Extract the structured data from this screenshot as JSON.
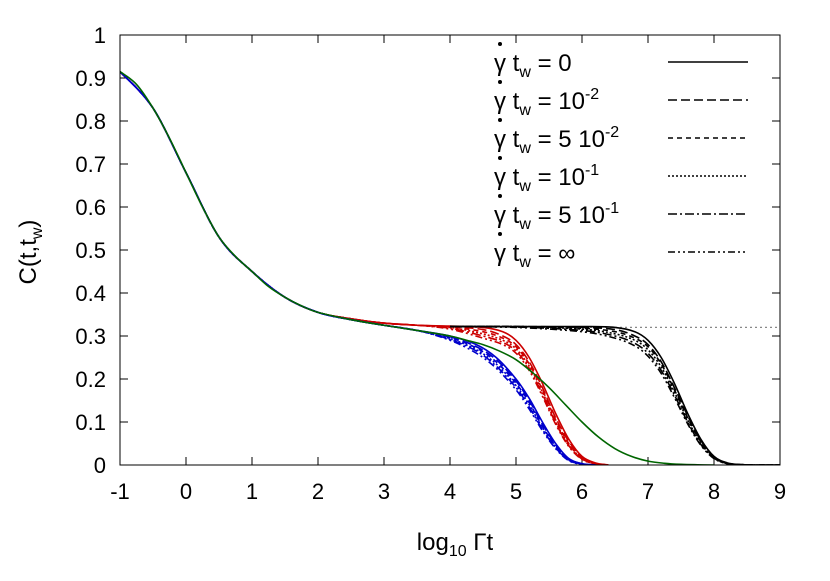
{
  "chart_data": {
    "type": "line",
    "xlabel": "log10 Γt",
    "ylabel": "C(t,tw)",
    "xlim": [
      -1,
      9
    ],
    "ylim": [
      0,
      1
    ],
    "xticks": [
      "-1",
      "0",
      "1",
      "2",
      "3",
      "4",
      "5",
      "6",
      "7",
      "8",
      "9"
    ],
    "yticks": [
      "0",
      "0.1",
      "0.2",
      "0.3",
      "0.4",
      "0.5",
      "0.6",
      "0.7",
      "0.8",
      "0.9",
      "1"
    ],
    "plateau_line": {
      "y": 0.32,
      "x_from": 4.0,
      "x_to": 9.0,
      "style": "dotted gray"
    },
    "legend": {
      "position": "top-right",
      "entries": [
        {
          "label": "γ̇ tw = 0",
          "dash": "solid"
        },
        {
          "label": "γ̇ tw = 10^-2",
          "dash": "dashed"
        },
        {
          "label": "γ̇ tw = 5 10^-2",
          "dash": "short-dashed"
        },
        {
          "label": "γ̇ tw = 10^-1",
          "dash": "dotted"
        },
        {
          "label": "γ̇ tw = 5 10^-1",
          "dash": "dash-dot"
        },
        {
          "label": "γ̇ tw = ∞",
          "dash": "dash-dot-dot"
        }
      ]
    },
    "series_groups": [
      {
        "color": "#cc0000",
        "series": [
          {
            "dash": "solid",
            "x": [
              -1,
              -0.5,
              0,
              0.5,
              1,
              1.5,
              2,
              2.5,
              3,
              3.5,
              4,
              4.5,
              4.8,
              5,
              5.2,
              5.4,
              5.6,
              5.8,
              6,
              6.2,
              6.4
            ],
            "y": [
              0.915,
              0.83,
              0.68,
              0.53,
              0.45,
              0.39,
              0.355,
              0.34,
              0.33,
              0.325,
              0.323,
              0.32,
              0.31,
              0.29,
              0.25,
              0.19,
              0.12,
              0.06,
              0.02,
              0.005,
              0
            ]
          },
          {
            "dash": "dashed",
            "x": [
              -1,
              -0.5,
              0,
              0.5,
              1,
              1.5,
              2,
              2.5,
              3,
              3.5,
              4,
              4.5,
              4.8,
              5,
              5.2,
              5.4,
              5.6,
              5.8,
              6,
              6.2,
              6.4
            ],
            "y": [
              0.915,
              0.83,
              0.68,
              0.53,
              0.45,
              0.39,
              0.355,
              0.34,
              0.33,
              0.325,
              0.322,
              0.315,
              0.3,
              0.28,
              0.24,
              0.18,
              0.11,
              0.055,
              0.018,
              0.004,
              0
            ]
          },
          {
            "dash": "short-dashed",
            "x": [
              -1,
              -0.5,
              0,
              0.5,
              1,
              1.5,
              2,
              2.5,
              3,
              3.5,
              4,
              4.5,
              4.8,
              5,
              5.2,
              5.4,
              5.6,
              5.8,
              6,
              6.2,
              6.4
            ],
            "y": [
              0.915,
              0.83,
              0.68,
              0.53,
              0.45,
              0.39,
              0.355,
              0.34,
              0.33,
              0.325,
              0.321,
              0.31,
              0.295,
              0.275,
              0.235,
              0.175,
              0.105,
              0.05,
              0.016,
              0.004,
              0
            ]
          },
          {
            "dash": "dotted",
            "x": [
              -1,
              -0.5,
              0,
              0.5,
              1,
              1.5,
              2,
              2.5,
              3,
              3.5,
              4,
              4.5,
              4.8,
              5,
              5.2,
              5.4,
              5.6,
              5.8,
              6,
              6.2,
              6.4
            ],
            "y": [
              0.915,
              0.83,
              0.68,
              0.53,
              0.45,
              0.39,
              0.355,
              0.34,
              0.33,
              0.325,
              0.32,
              0.305,
              0.29,
              0.27,
              0.23,
              0.17,
              0.1,
              0.048,
              0.015,
              0.003,
              0
            ]
          },
          {
            "dash": "dash-dot",
            "x": [
              -1,
              -0.5,
              0,
              0.5,
              1,
              1.5,
              2,
              2.5,
              3,
              3.5,
              4,
              4.5,
              4.8,
              5,
              5.2,
              5.4,
              5.6,
              5.8,
              6,
              6.2,
              6.4
            ],
            "y": [
              0.915,
              0.83,
              0.68,
              0.53,
              0.45,
              0.39,
              0.355,
              0.34,
              0.33,
              0.325,
              0.318,
              0.3,
              0.285,
              0.265,
              0.225,
              0.165,
              0.098,
              0.045,
              0.014,
              0.003,
              0
            ]
          },
          {
            "dash": "dash-dot-dot",
            "x": [
              -1,
              -0.5,
              0,
              0.5,
              1,
              1.5,
              2,
              2.5,
              3,
              3.5,
              4,
              4.5,
              4.8,
              5,
              5.2,
              5.4,
              5.6,
              5.8,
              6,
              6.2,
              6.4
            ],
            "y": [
              0.915,
              0.83,
              0.68,
              0.53,
              0.45,
              0.39,
              0.355,
              0.34,
              0.33,
              0.325,
              0.316,
              0.295,
              0.28,
              0.26,
              0.22,
              0.16,
              0.095,
              0.043,
              0.013,
              0.003,
              0
            ]
          }
        ]
      },
      {
        "color": "#0000cc",
        "series": [
          {
            "dash": "solid",
            "x": [
              -1,
              -0.5,
              0,
              0.5,
              1,
              1.5,
              2,
              2.5,
              3,
              3.5,
              4,
              4.4,
              4.7,
              5,
              5.2,
              5.4,
              5.6,
              5.8,
              6,
              6.2
            ],
            "y": [
              0.915,
              0.83,
              0.68,
              0.53,
              0.45,
              0.39,
              0.355,
              0.338,
              0.325,
              0.313,
              0.3,
              0.28,
              0.25,
              0.2,
              0.155,
              0.1,
              0.05,
              0.015,
              0.003,
              0
            ]
          },
          {
            "dash": "dashed",
            "x": [
              -1,
              -0.5,
              0,
              0.5,
              1,
              1.5,
              2,
              2.5,
              3,
              3.5,
              4,
              4.4,
              4.7,
              5,
              5.2,
              5.4,
              5.6,
              5.8,
              6,
              6.2
            ],
            "y": [
              0.915,
              0.83,
              0.68,
              0.53,
              0.45,
              0.39,
              0.355,
              0.338,
              0.325,
              0.313,
              0.298,
              0.275,
              0.245,
              0.195,
              0.15,
              0.095,
              0.047,
              0.014,
              0.003,
              0
            ]
          },
          {
            "dash": "short-dashed",
            "x": [
              -1,
              -0.5,
              0,
              0.5,
              1,
              1.5,
              2,
              2.5,
              3,
              3.5,
              4,
              4.4,
              4.7,
              5,
              5.2,
              5.4,
              5.6,
              5.8,
              6,
              6.2
            ],
            "y": [
              0.915,
              0.83,
              0.68,
              0.53,
              0.45,
              0.39,
              0.355,
              0.338,
              0.325,
              0.313,
              0.296,
              0.272,
              0.24,
              0.19,
              0.145,
              0.09,
              0.044,
              0.013,
              0.002,
              0
            ]
          },
          {
            "dash": "dotted",
            "x": [
              -1,
              -0.5,
              0,
              0.5,
              1,
              1.5,
              2,
              2.5,
              3,
              3.5,
              4,
              4.4,
              4.7,
              5,
              5.2,
              5.4,
              5.6,
              5.8,
              6,
              6.2
            ],
            "y": [
              0.915,
              0.83,
              0.68,
              0.53,
              0.45,
              0.39,
              0.355,
              0.338,
              0.325,
              0.313,
              0.294,
              0.268,
              0.235,
              0.185,
              0.14,
              0.087,
              0.042,
              0.012,
              0.002,
              0
            ]
          },
          {
            "dash": "dash-dot",
            "x": [
              -1,
              -0.5,
              0,
              0.5,
              1,
              1.5,
              2,
              2.5,
              3,
              3.5,
              4,
              4.4,
              4.7,
              5,
              5.2,
              5.4,
              5.6,
              5.8,
              6,
              6.2
            ],
            "y": [
              0.915,
              0.83,
              0.68,
              0.53,
              0.45,
              0.39,
              0.355,
              0.338,
              0.325,
              0.313,
              0.292,
              0.265,
              0.23,
              0.18,
              0.135,
              0.083,
              0.04,
              0.011,
              0.002,
              0
            ]
          },
          {
            "dash": "dash-dot-dot",
            "x": [
              -1,
              -0.5,
              0,
              0.5,
              1,
              1.5,
              2,
              2.5,
              3,
              3.5,
              4,
              4.4,
              4.7,
              5,
              5.2,
              5.4,
              5.6,
              5.8,
              6,
              6.2
            ],
            "y": [
              0.915,
              0.83,
              0.68,
              0.53,
              0.45,
              0.39,
              0.355,
              0.338,
              0.325,
              0.313,
              0.29,
              0.26,
              0.225,
              0.175,
              0.13,
              0.08,
              0.038,
              0.01,
              0.002,
              0
            ]
          }
        ]
      },
      {
        "color": "#000000",
        "series": [
          {
            "dash": "solid",
            "x": [
              4,
              5,
              6,
              6.5,
              6.8,
              7,
              7.2,
              7.4,
              7.6,
              7.8,
              8,
              8.2,
              8.4,
              8.6,
              9
            ],
            "y": [
              0.322,
              0.322,
              0.322,
              0.32,
              0.31,
              0.29,
              0.25,
              0.19,
              0.12,
              0.06,
              0.02,
              0.005,
              0.001,
              0,
              0
            ]
          },
          {
            "dash": "dashed",
            "x": [
              4,
              5,
              6,
              6.5,
              6.8,
              7,
              7.2,
              7.4,
              7.6,
              7.8,
              8,
              8.2,
              8.4,
              8.6,
              9
            ],
            "y": [
              0.322,
              0.322,
              0.32,
              0.315,
              0.3,
              0.28,
              0.24,
              0.18,
              0.115,
              0.057,
              0.019,
              0.004,
              0.001,
              0,
              0
            ]
          },
          {
            "dash": "short-dashed",
            "x": [
              4,
              5,
              6,
              6.5,
              6.8,
              7,
              7.2,
              7.4,
              7.6,
              7.8,
              8,
              8.2,
              8.4,
              8.6,
              9
            ],
            "y": [
              0.322,
              0.322,
              0.318,
              0.31,
              0.295,
              0.275,
              0.235,
              0.175,
              0.11,
              0.054,
              0.018,
              0.004,
              0.001,
              0,
              0
            ]
          },
          {
            "dash": "dotted",
            "x": [
              4,
              5,
              6,
              6.5,
              6.8,
              7,
              7.2,
              7.4,
              7.6,
              7.8,
              8,
              8.2,
              8.4,
              8.6,
              9
            ],
            "y": [
              0.322,
              0.322,
              0.316,
              0.305,
              0.29,
              0.268,
              0.228,
              0.17,
              0.105,
              0.051,
              0.017,
              0.004,
              0.001,
              0,
              0
            ]
          },
          {
            "dash": "dash-dot",
            "x": [
              4,
              5,
              6,
              6.5,
              6.8,
              7,
              7.2,
              7.4,
              7.6,
              7.8,
              8,
              8.2,
              8.4,
              8.6,
              9
            ],
            "y": [
              0.322,
              0.321,
              0.313,
              0.3,
              0.283,
              0.26,
              0.22,
              0.163,
              0.1,
              0.048,
              0.016,
              0.003,
              0.001,
              0,
              0
            ]
          },
          {
            "dash": "dash-dot-dot",
            "x": [
              4,
              5,
              6,
              6.5,
              6.8,
              7,
              7.2,
              7.4,
              7.6,
              7.8,
              8,
              8.2,
              8.4,
              8.6,
              9
            ],
            "y": [
              0.322,
              0.32,
              0.31,
              0.295,
              0.277,
              0.253,
              0.213,
              0.157,
              0.096,
              0.046,
              0.015,
              0.003,
              0.001,
              0,
              0
            ]
          }
        ]
      },
      {
        "color": "#006600",
        "series": [
          {
            "dash": "solid",
            "x": [
              -1,
              -0.75,
              -0.5,
              -0.25,
              0,
              0.25,
              0.5,
              0.75,
              1,
              1.25,
              1.5,
              1.75,
              2,
              2.5,
              3,
              3.5,
              4,
              4.25,
              4.5,
              4.75,
              5,
              5.25,
              5.5,
              5.75,
              6,
              6.25,
              6.5,
              6.75,
              7,
              7.25,
              7.5,
              7.75,
              8
            ],
            "y": [
              0.915,
              0.885,
              0.83,
              0.76,
              0.68,
              0.6,
              0.53,
              0.485,
              0.45,
              0.415,
              0.39,
              0.37,
              0.355,
              0.338,
              0.325,
              0.313,
              0.3,
              0.29,
              0.28,
              0.265,
              0.245,
              0.215,
              0.18,
              0.14,
              0.1,
              0.065,
              0.038,
              0.02,
              0.009,
              0.004,
              0.0015,
              0.0005,
              0
            ]
          }
        ]
      }
    ]
  }
}
